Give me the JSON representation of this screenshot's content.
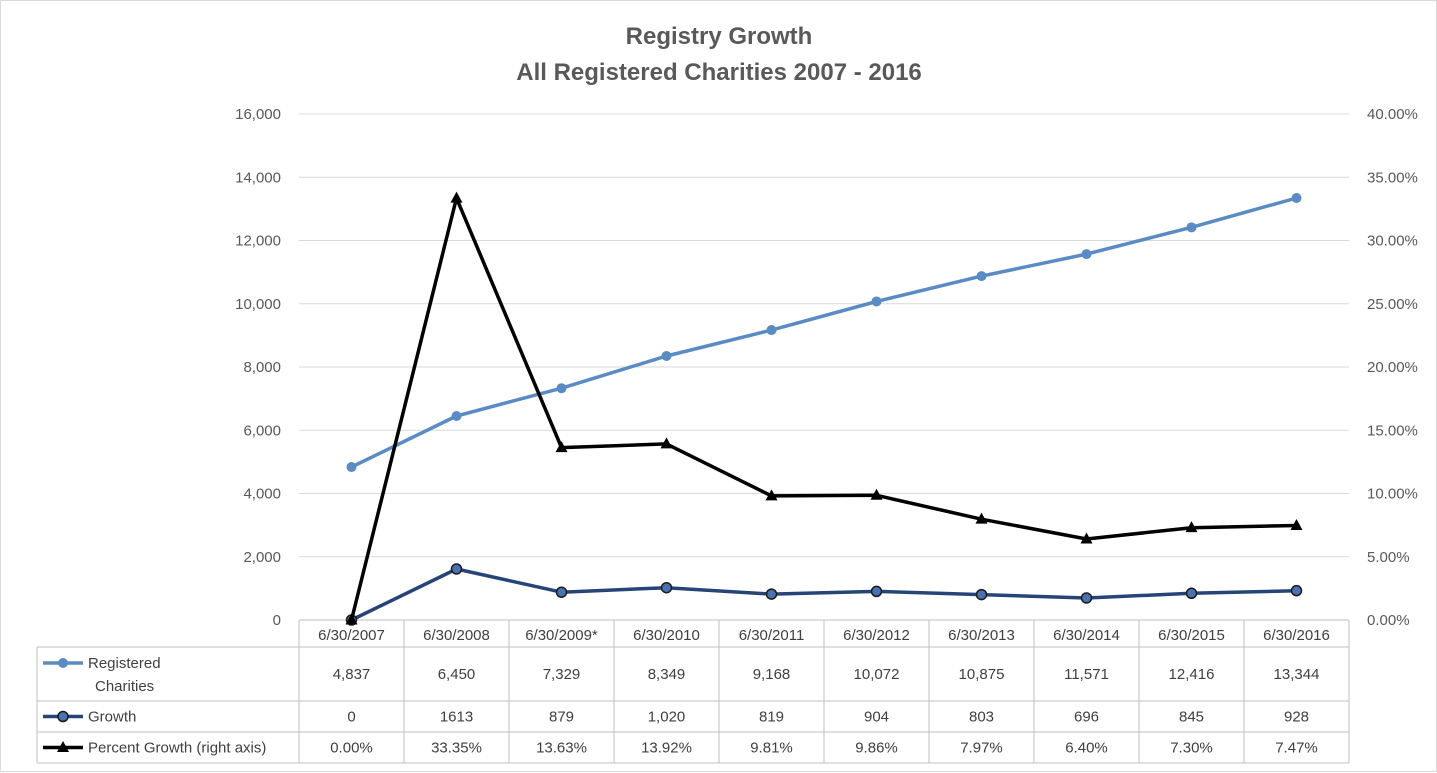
{
  "chart_data": {
    "type": "line",
    "title": "Registry Growth",
    "subtitle": "All Registered Charities 2007 - 2016",
    "categories": [
      "6/30/2007",
      "6/30/2008",
      "6/30/2009*",
      "6/30/2010",
      "6/30/2011",
      "6/30/2012",
      "6/30/2013",
      "6/30/2014",
      "6/30/2015",
      "6/30/2016"
    ],
    "y_left": {
      "min": 0,
      "max": 16000,
      "step": 2000,
      "tick_labels": [
        "0",
        "2,000",
        "4,000",
        "6,000",
        "8,000",
        "10,000",
        "12,000",
        "14,000",
        "16,000"
      ]
    },
    "y_right": {
      "min": 0,
      "max": 0.4,
      "step": 0.05,
      "tick_labels": [
        "0.00%",
        "5.00%",
        "10.00%",
        "15.00%",
        "20.00%",
        "25.00%",
        "30.00%",
        "35.00%",
        "40.00%"
      ]
    },
    "grid": true,
    "data_table": true,
    "series": [
      {
        "name_lines": [
          "Registered",
          "Charities"
        ],
        "axis": "left",
        "color": "#5b8bc4",
        "marker": "circle-filled",
        "values": [
          4837,
          6450,
          7329,
          8349,
          9168,
          10072,
          10875,
          11571,
          12416,
          13344
        ],
        "labels": [
          "4,837",
          "6,450",
          "7,329",
          "8,349",
          "9,168",
          "10,072",
          "10,875",
          "11,571",
          "12,416",
          "13,344"
        ]
      },
      {
        "name_lines": [
          "Growth"
        ],
        "axis": "left",
        "color": "#264478",
        "marker_fill": "#4a72b0",
        "marker": "circle-outlined",
        "values": [
          0,
          1613,
          879,
          1020,
          819,
          904,
          803,
          696,
          845,
          928
        ],
        "labels": [
          "0",
          "1613",
          "879",
          "1,020",
          "819",
          "904",
          "803",
          "696",
          "845",
          "928"
        ]
      },
      {
        "name_lines": [
          "Percent Growth (right axis)"
        ],
        "axis": "right",
        "color": "#000000",
        "marker": "triangle",
        "values": [
          0.0,
          0.3335,
          0.1363,
          0.1392,
          0.0981,
          0.0986,
          0.0797,
          0.064,
          0.073,
          0.0747
        ],
        "labels": [
          "0.00%",
          "33.35%",
          "13.63%",
          "13.92%",
          "9.81%",
          "9.86%",
          "7.97%",
          "6.40%",
          "7.30%",
          "7.47%"
        ]
      }
    ]
  }
}
